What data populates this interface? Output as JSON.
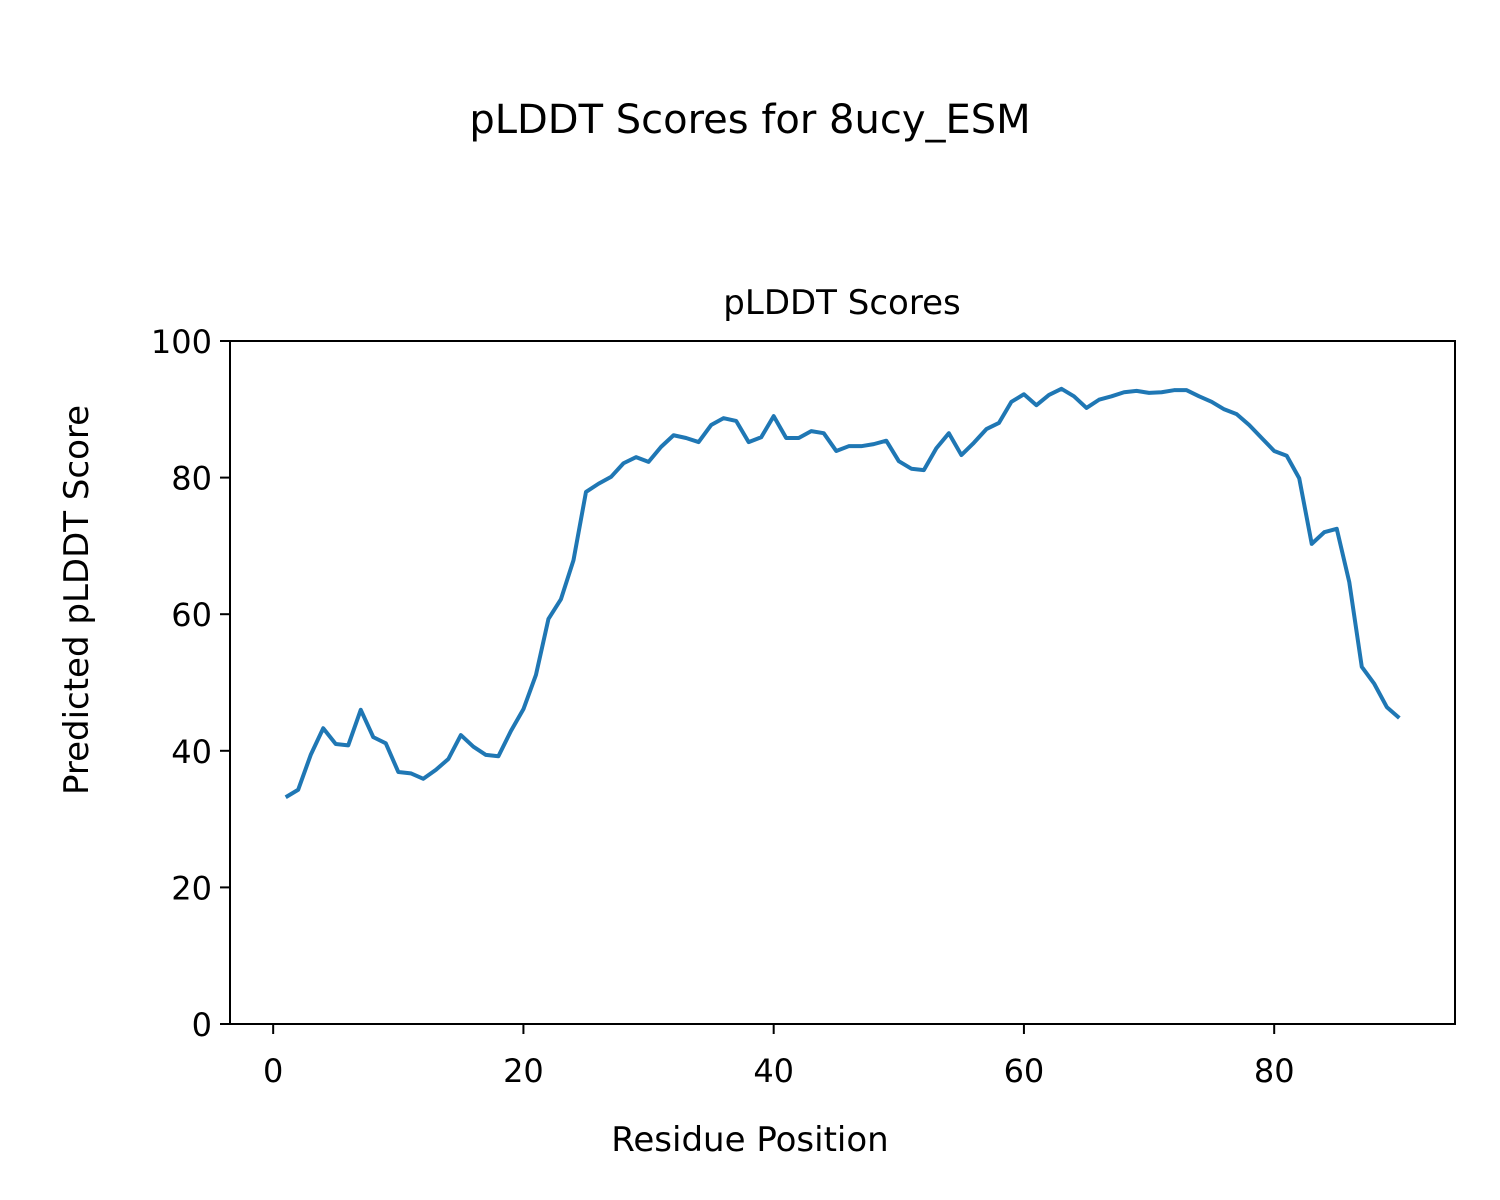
{
  "chart_data": {
    "type": "line",
    "suptitle": "pLDDT Scores for 8ucy_ESM",
    "title": "pLDDT Scores",
    "xlabel": "Residue Position",
    "ylabel": "Predicted pLDDT Score",
    "x": [
      1,
      2,
      3,
      4,
      5,
      6,
      7,
      8,
      9,
      10,
      11,
      12,
      13,
      14,
      15,
      16,
      17,
      18,
      19,
      20,
      21,
      22,
      23,
      24,
      25,
      26,
      27,
      28,
      29,
      30,
      31,
      32,
      33,
      34,
      35,
      36,
      37,
      38,
      39,
      40,
      41,
      42,
      43,
      44,
      45,
      46,
      47,
      48,
      49,
      50,
      51,
      52,
      53,
      54,
      55,
      56,
      57,
      58,
      59,
      60,
      61,
      62,
      63,
      64,
      65,
      66,
      67,
      68,
      69,
      70,
      71,
      72,
      73,
      74,
      75,
      76,
      77,
      78,
      79,
      80,
      81,
      82,
      83,
      84,
      85,
      86,
      87,
      88,
      89,
      90
    ],
    "series": [
      {
        "color": "#1f77b4",
        "values": [
          33.2,
          34.3,
          39.4,
          43.3,
          41.0,
          40.8,
          46.0,
          42.0,
          41.1,
          36.9,
          36.7,
          35.9,
          37.2,
          38.8,
          42.3,
          40.6,
          39.4,
          39.2,
          42.9,
          46.1,
          51.1,
          59.3,
          62.2,
          67.9,
          77.9,
          79.1,
          80.1,
          82.1,
          83.0,
          82.3,
          84.5,
          86.2,
          85.8,
          85.2,
          87.7,
          88.7,
          88.3,
          85.2,
          85.9,
          89.0,
          85.8,
          85.8,
          86.8,
          86.5,
          83.9,
          84.6,
          84.6,
          84.9,
          85.4,
          82.4,
          81.3,
          81.1,
          84.3,
          86.5,
          83.3,
          85.1,
          87.1,
          88.0,
          91.1,
          92.2,
          90.6,
          92.1,
          93.0,
          91.9,
          90.2,
          91.4,
          91.9,
          92.5,
          92.7,
          92.4,
          92.5,
          92.8,
          92.8,
          91.9,
          91.1,
          90.0,
          89.3,
          87.7,
          85.8,
          83.9,
          83.2,
          79.9,
          70.3,
          72.0,
          72.5,
          64.7,
          52.3,
          49.8,
          46.4,
          44.8
        ]
      }
    ],
    "xlim": [
      -3.45,
      94.45
    ],
    "xticks": [
      0,
      20,
      40,
      60,
      80
    ],
    "ylim": [
      0,
      100
    ],
    "yticks": [
      0,
      20,
      40,
      60,
      80,
      100
    ]
  }
}
